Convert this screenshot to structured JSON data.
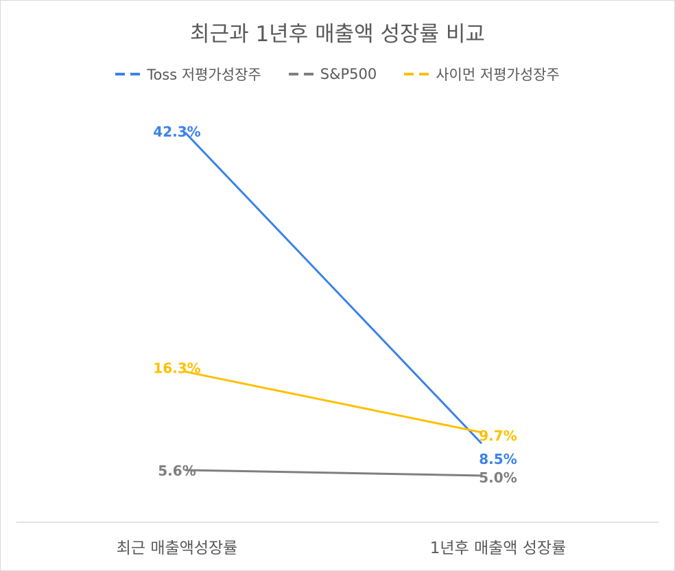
{
  "chart_data": {
    "type": "line",
    "title": "최근과 1년후 매출액 성장률 비교",
    "categories": [
      "최근 매출액성장률",
      "1년후 매출액 성장률"
    ],
    "series": [
      {
        "name": "Toss 저평가성장주",
        "values": [
          42.3,
          8.5
        ],
        "labels": [
          "42.3%",
          "8.5%"
        ],
        "color": "#3C82E8"
      },
      {
        "name": "S&P500",
        "values": [
          5.6,
          5.0
        ],
        "labels": [
          "5.6%",
          "5.0%"
        ],
        "color": "#7F7F7F"
      },
      {
        "name": "사이먼 저평가성장주",
        "values": [
          16.3,
          9.7
        ],
        "labels": [
          "16.3%",
          "9.7%"
        ],
        "color": "#FFC000"
      }
    ],
    "legend_position": "top",
    "grid": false
  }
}
